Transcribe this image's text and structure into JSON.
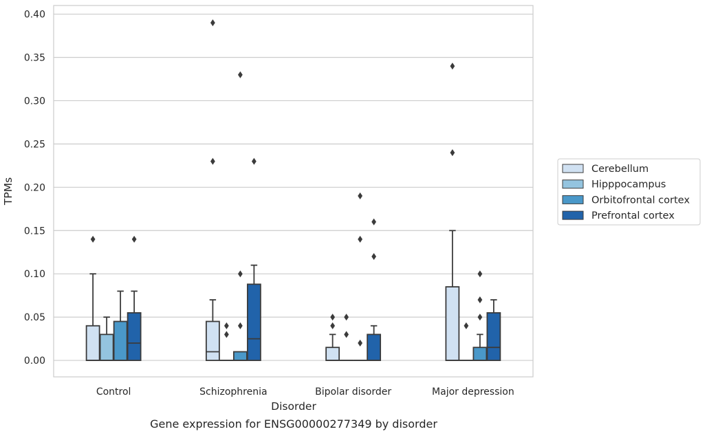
{
  "chart_data": {
    "type": "box",
    "xlabel": "Disorder",
    "ylabel": "TPMs",
    "caption": "Gene expression for ENSG00000277349 by disorder",
    "ylim": [
      -0.019,
      0.41
    ],
    "yticks": [
      0.0,
      0.05,
      0.1,
      0.15,
      0.2,
      0.25,
      0.3,
      0.35,
      0.4
    ],
    "ytick_labels": [
      "0.00",
      "0.05",
      "0.10",
      "0.15",
      "0.20",
      "0.25",
      "0.30",
      "0.35",
      "0.40"
    ],
    "grid": true,
    "legend_position": "right",
    "categories": [
      "Control",
      "Schizophrenia",
      "Bipolar disorder",
      "Major depression"
    ],
    "series": [
      {
        "name": "Cerebellum",
        "color": "#d0e1f2",
        "boxes": [
          {
            "q1": 0.0,
            "median": 0.0,
            "q3": 0.04,
            "whisker_low": 0.0,
            "whisker_high": 0.1,
            "outliers": [
              0.14
            ]
          },
          {
            "q1": 0.0,
            "median": 0.01,
            "q3": 0.045,
            "whisker_low": 0.0,
            "whisker_high": 0.07,
            "outliers": [
              0.23,
              0.39
            ]
          },
          {
            "q1": 0.0,
            "median": 0.0,
            "q3": 0.015,
            "whisker_low": 0.0,
            "whisker_high": 0.03,
            "outliers": [
              0.04,
              0.05
            ]
          },
          {
            "q1": 0.0,
            "median": 0.0,
            "q3": 0.085,
            "whisker_low": 0.0,
            "whisker_high": 0.15,
            "outliers": [
              0.24,
              0.34
            ]
          }
        ]
      },
      {
        "name": "Hipppocampus",
        "color": "#94c4df",
        "boxes": [
          {
            "q1": 0.0,
            "median": 0.0,
            "q3": 0.03,
            "whisker_low": 0.0,
            "whisker_high": 0.05,
            "outliers": []
          },
          {
            "q1": 0.0,
            "median": 0.0,
            "q3": 0.0,
            "whisker_low": 0.0,
            "whisker_high": 0.0,
            "outliers": [
              0.03,
              0.04
            ]
          },
          {
            "q1": 0.0,
            "median": 0.0,
            "q3": 0.0,
            "whisker_low": 0.0,
            "whisker_high": 0.0,
            "outliers": [
              0.03,
              0.05
            ]
          },
          {
            "q1": 0.0,
            "median": 0.0,
            "q3": 0.0,
            "whisker_low": 0.0,
            "whisker_high": 0.0,
            "outliers": [
              0.04
            ]
          }
        ]
      },
      {
        "name": "Orbitofrontal cortex",
        "color": "#4a98c9",
        "boxes": [
          {
            "q1": 0.0,
            "median": 0.0,
            "q3": 0.045,
            "whisker_low": 0.0,
            "whisker_high": 0.08,
            "outliers": []
          },
          {
            "q1": 0.0,
            "median": 0.0,
            "q3": 0.01,
            "whisker_low": 0.0,
            "whisker_high": 0.01,
            "outliers": [
              0.04,
              0.1,
              0.33
            ]
          },
          {
            "q1": 0.0,
            "median": 0.0,
            "q3": 0.0,
            "whisker_low": 0.0,
            "whisker_high": 0.0,
            "outliers": [
              0.02,
              0.14,
              0.19
            ]
          },
          {
            "q1": 0.0,
            "median": 0.0,
            "q3": 0.015,
            "whisker_low": 0.0,
            "whisker_high": 0.03,
            "outliers": [
              0.05,
              0.07,
              0.1
            ]
          }
        ]
      },
      {
        "name": "Prefrontal cortex",
        "color": "#2163aa",
        "boxes": [
          {
            "q1": 0.0,
            "median": 0.02,
            "q3": 0.055,
            "whisker_low": 0.0,
            "whisker_high": 0.08,
            "outliers": [
              0.14
            ]
          },
          {
            "q1": 0.0,
            "median": 0.025,
            "q3": 0.088,
            "whisker_low": 0.0,
            "whisker_high": 0.11,
            "outliers": [
              0.23
            ]
          },
          {
            "q1": 0.0,
            "median": 0.0,
            "q3": 0.03,
            "whisker_low": 0.0,
            "whisker_high": 0.04,
            "outliers": [
              0.12,
              0.16
            ]
          },
          {
            "q1": 0.0,
            "median": 0.015,
            "q3": 0.055,
            "whisker_low": 0.0,
            "whisker_high": 0.07,
            "outliers": []
          }
        ]
      }
    ]
  }
}
